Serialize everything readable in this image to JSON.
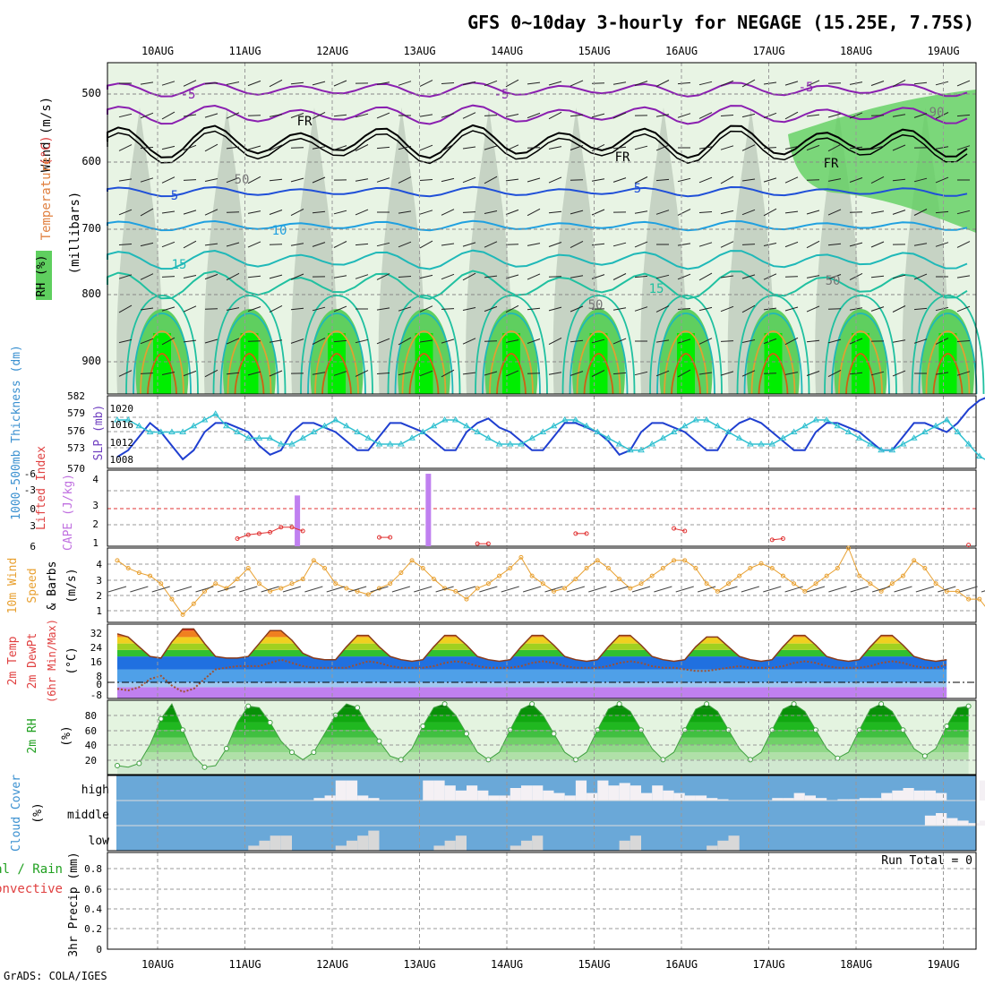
{
  "title": "GFS 0~10day 3-hourly for NEGAGE (15.25E, 7.75S)",
  "footer": "GrADS: COLA/IGES",
  "colors": {
    "rh_light": "#e8f4e4",
    "rh_mid": "#bfd9bb",
    "rh_gray": "#a9b8a9",
    "rh_green": "#5fcf5f",
    "rh_bright": "#00ee00",
    "temp_purple": "#8a1fb0",
    "temp_blue": "#1f4fd8",
    "temp_lightblue": "#1fa0e0",
    "temp_teal": "#1fb8b8",
    "temp_green": "#20c0a0",
    "temp_orange": "#e0a030",
    "temp_darkorange": "#d06010",
    "temp_magenta": "#d0108a",
    "slp": "#1f3fd0",
    "thickness": "#30c0d0",
    "lifted_index": "#e03030",
    "cape": "#c080f0",
    "wind_speed": "#e8a030",
    "temp2m": "#8a3a1a",
    "dewpt": "#a05030",
    "rh2m": "#20a020",
    "cloud_bg": "#6aa8d8",
    "cloud_fill": "#f4f0f4",
    "label_red": "#e04040",
    "label_green": "#20a020"
  },
  "x_axis": {
    "top_labels": [
      "10AUG",
      "11AUG",
      "12AUG",
      "13AUG",
      "14AUG",
      "15AUG",
      "16AUG",
      "17AUG",
      "18AUG",
      "19AUG"
    ],
    "bottom_labels": [
      "10AUG",
      "11AUG",
      "12AUG",
      "13AUG",
      "14AUG",
      "15AUG",
      "16AUG",
      "17AUG",
      "18AUG",
      "19AUG"
    ]
  },
  "panels": {
    "upper_air": {
      "labels": {
        "wind": "Wind (m/s)",
        "temperature": "Temperature",
        "temp_unit": "(°C)",
        "rh": "RH (%)",
        "pressure_axis": "(millibars)"
      },
      "y_ticks": [
        "500",
        "600",
        "700",
        "800",
        "900"
      ],
      "contour_labels": [
        "-5",
        "-5",
        "-5",
        "FR",
        "FR",
        "FR",
        "5",
        "5",
        "10",
        "15",
        "15",
        "50",
        "50",
        "50",
        "90"
      ]
    },
    "slp_thickness": {
      "labels": {
        "thickness": "1000-500mb Thickness (dm)",
        "slp": "SLP (mb)"
      },
      "thickness_ticks": [
        "582",
        "579",
        "576",
        "573",
        "570"
      ],
      "slp_ticks": [
        "1020",
        "1016",
        "1012",
        "1008"
      ]
    },
    "cape_li": {
      "labels": {
        "li": "Lifted Index",
        "cape": "CAPE (J/kg)"
      },
      "li_ticks": [
        "-6",
        "-3",
        "0",
        "3",
        "6"
      ],
      "cape_ticks": [
        "4",
        "3",
        "2",
        "1"
      ]
    },
    "wind10m": {
      "labels": {
        "line1": "10m Wind",
        "line2": "Speed",
        "line3": "& Barbs",
        "unit": "(m/s)"
      },
      "y_ticks": [
        "4",
        "3",
        "2",
        "1"
      ]
    },
    "temp2m": {
      "labels": {
        "line1": "2m Temp",
        "line2": "2m DewPt",
        "line3": "(6hr Min/Max)",
        "unit": "(°C)"
      },
      "y_ticks": [
        "32",
        "24",
        "16",
        "8",
        "0",
        "-8"
      ]
    },
    "rh2m": {
      "labels": {
        "line1": "2m RH",
        "unit": "(%)"
      },
      "y_ticks": [
        "80",
        "60",
        "40",
        "20"
      ]
    },
    "cloud": {
      "labels": {
        "line1": "Cloud Cover",
        "unit": "(%)",
        "high": "high",
        "middle": "middle",
        "low": "low"
      }
    },
    "precip": {
      "labels": {
        "line1": "Total / Rain",
        "line2": "Convective",
        "line3": "3hr Precip (mm)"
      },
      "run_total": "Run Total = 0",
      "y_ticks": [
        "0.8",
        "0.6",
        "0.4",
        "0.2",
        "0"
      ]
    }
  },
  "chart_data": [
    {
      "type": "line",
      "panel": "slp_thickness",
      "x_unit": "3-hourly steps from 09AUG 12Z",
      "series": [
        {
          "name": "SLP (mb)",
          "values": [
            1008.5,
            1010,
            1013,
            1016,
            1014,
            1011,
            1008,
            1010,
            1014,
            1016,
            1016,
            1015,
            1014,
            1011,
            1009,
            1010,
            1014,
            1016,
            1016,
            1015,
            1014,
            1012,
            1010,
            1010,
            1013,
            1016,
            1016,
            1015,
            1014,
            1012,
            1010,
            1010,
            1014,
            1016,
            1017,
            1015,
            1014,
            1012,
            1010,
            1010,
            1013,
            1016,
            1016,
            1015,
            1014,
            1012,
            1009,
            1010,
            1014,
            1016,
            1016,
            1015,
            1014,
            1012,
            1010,
            1010,
            1014,
            1016,
            1017,
            1016,
            1014,
            1012,
            1010,
            1010,
            1014,
            1016,
            1016,
            1015,
            1014,
            1012,
            1010,
            1010,
            1013,
            1016,
            1016,
            1015,
            1014,
            1016,
            1019,
            1021,
            1022
          ]
        },
        {
          "name": "Thickness (dm)",
          "values": [
            578,
            578,
            577,
            576,
            576,
            576,
            576,
            577,
            578,
            579,
            577,
            576,
            575,
            575,
            575,
            574,
            574,
            575,
            576,
            577,
            578,
            577,
            576,
            575,
            574,
            574,
            574,
            575,
            576,
            577,
            578,
            578,
            577,
            576,
            575,
            574,
            574,
            574,
            575,
            576,
            577,
            578,
            578,
            577,
            576,
            575,
            574,
            573,
            573,
            574,
            575,
            576,
            577,
            578,
            578,
            577,
            576,
            575,
            574,
            574,
            574,
            575,
            576,
            577,
            578,
            578,
            577,
            576,
            575,
            574,
            573,
            573,
            574,
            575,
            576,
            577,
            578,
            576,
            574,
            572,
            571
          ]
        }
      ],
      "ylim_thickness": [
        570,
        582
      ],
      "ylim_slp": [
        1006,
        1022
      ]
    },
    {
      "type": "bar",
      "panel": "cape_li",
      "series": [
        {
          "name": "CAPE (J/kg)",
          "bars": [
            {
              "x": 16.5,
              "value": 2.8
            },
            {
              "x": 28.5,
              "value": 4.0
            }
          ]
        },
        {
          "name": "Lifted Index",
          "points": [
            [
              11,
              4.8
            ],
            [
              12,
              4.2
            ],
            [
              13,
              4.0
            ],
            [
              14,
              3.8
            ],
            [
              15,
              3.0
            ],
            [
              16,
              3.0
            ],
            [
              17,
              3.6
            ],
            [
              24,
              4.6
            ],
            [
              25,
              4.6
            ],
            [
              33,
              5.6
            ],
            [
              34,
              5.6
            ],
            [
              42,
              4.0
            ],
            [
              43,
              4.0
            ],
            [
              51,
              3.2
            ],
            [
              52,
              3.6
            ],
            [
              60,
              5.0
            ],
            [
              61,
              4.8
            ],
            [
              78,
              5.8
            ]
          ]
        }
      ],
      "ylim_cape": [
        0,
        4.2
      ],
      "ylim_li": [
        6,
        -6
      ]
    },
    {
      "type": "line",
      "panel": "wind10m",
      "series": [
        {
          "name": "10m Wind Speed (m/s)",
          "values": [
            4,
            3.5,
            3.2,
            3,
            2.5,
            1.5,
            0.5,
            1.2,
            2,
            2.5,
            2.2,
            2.8,
            3.5,
            2.5,
            2,
            2.2,
            2.5,
            2.8,
            4,
            3.5,
            2.5,
            2.2,
            2,
            1.8,
            2.2,
            2.5,
            3.2,
            4,
            3.5,
            2.8,
            2.2,
            2,
            1.5,
            2.2,
            2.5,
            3,
            3.5,
            4.2,
            3,
            2.5,
            2,
            2.2,
            2.8,
            3.5,
            4,
            3.5,
            2.8,
            2.2,
            2.5,
            3,
            3.5,
            4,
            4,
            3.5,
            2.5,
            2,
            2.5,
            3,
            3.5,
            3.8,
            3.5,
            3,
            2.5,
            2,
            2.5,
            3,
            3.5,
            4.8,
            3,
            2.5,
            2,
            2.5,
            3,
            4,
            3.5,
            2.5,
            2,
            2,
            1.5,
            1.5,
            0.6
          ]
        }
      ],
      "ylim": [
        0,
        4.8
      ]
    },
    {
      "type": "area",
      "panel": "temp2m",
      "series": [
        {
          "name": "2m Temp (°C)",
          "values": [
            30,
            28,
            22,
            16,
            15,
            25,
            33,
            33,
            24,
            16,
            15,
            15,
            16,
            24,
            32,
            32,
            26,
            18,
            15,
            14,
            14,
            22,
            29,
            29,
            22,
            16,
            14,
            13,
            14,
            22,
            29,
            29,
            23,
            16,
            14,
            13,
            14,
            22,
            29,
            29,
            23,
            16,
            14,
            13,
            14,
            22,
            29,
            29,
            23,
            16,
            14,
            13,
            14,
            22,
            28,
            28,
            22,
            16,
            14,
            13,
            14,
            22,
            29,
            29,
            23,
            16,
            14,
            13,
            14,
            22,
            29,
            29,
            23,
            16,
            14,
            13,
            14
          ]
        },
        {
          "name": "2m DewPt (°C)",
          "values": [
            -4,
            -5,
            -3,
            2,
            4,
            -2,
            -6,
            -4,
            2,
            8,
            9,
            10,
            10,
            10,
            12,
            14,
            12,
            10,
            9,
            9,
            9,
            9,
            11,
            13,
            12,
            10,
            9,
            9,
            9,
            10,
            12,
            13,
            12,
            10,
            9,
            9,
            9,
            10,
            12,
            13,
            12,
            10,
            9,
            9,
            9,
            10,
            12,
            13,
            12,
            10,
            9,
            9,
            8,
            7,
            7,
            8,
            9,
            10,
            9,
            9,
            9,
            10,
            12,
            13,
            12,
            10,
            9,
            9,
            9,
            10,
            12,
            13,
            12,
            10,
            9,
            9,
            11
          ]
        }
      ],
      "ylim": [
        -10,
        36
      ]
    },
    {
      "type": "area",
      "panel": "rh2m",
      "series": [
        {
          "name": "2m RH (%)",
          "values": [
            12,
            10,
            15,
            40,
            75,
            95,
            60,
            25,
            10,
            12,
            35,
            70,
            92,
            90,
            70,
            45,
            30,
            20,
            30,
            55,
            80,
            95,
            90,
            65,
            45,
            25,
            20,
            35,
            65,
            90,
            95,
            80,
            55,
            30,
            20,
            30,
            60,
            88,
            95,
            80,
            55,
            30,
            20,
            30,
            60,
            88,
            95,
            85,
            60,
            35,
            20,
            30,
            60,
            88,
            95,
            85,
            60,
            35,
            20,
            30,
            60,
            88,
            95,
            85,
            60,
            35,
            22,
            30,
            60,
            88,
            95,
            85,
            60,
            35,
            25,
            35,
            65,
            90,
            92
          ]
        }
      ],
      "ylim": [
        0,
        100
      ]
    },
    {
      "type": "bar",
      "panel": "cloud",
      "series": [
        {
          "name": "high",
          "values": [
            0,
            0,
            0,
            0,
            0,
            0,
            0,
            0,
            0,
            0,
            0,
            0,
            0,
            0,
            0,
            0,
            0,
            0,
            10,
            20,
            80,
            80,
            20,
            10,
            0,
            0,
            0,
            0,
            80,
            80,
            60,
            40,
            60,
            40,
            20,
            20,
            50,
            60,
            60,
            40,
            30,
            20,
            80,
            30,
            80,
            60,
            70,
            60,
            30,
            60,
            40,
            30,
            20,
            20,
            10,
            5,
            0,
            0,
            0,
            0,
            10,
            10,
            30,
            20,
            10,
            0,
            5,
            5,
            10,
            10,
            30,
            40,
            50,
            40,
            40,
            30,
            0,
            0,
            0,
            80,
            60
          ]
        },
        {
          "name": "middle",
          "values": [
            0,
            0,
            0,
            0,
            0,
            0,
            0,
            0,
            0,
            0,
            0,
            0,
            0,
            0,
            0,
            0,
            0,
            0,
            0,
            0,
            0,
            0,
            0,
            0,
            0,
            0,
            0,
            0,
            0,
            0,
            0,
            0,
            0,
            0,
            0,
            0,
            0,
            0,
            0,
            0,
            0,
            0,
            0,
            0,
            0,
            0,
            0,
            0,
            0,
            0,
            0,
            0,
            0,
            0,
            0,
            0,
            0,
            0,
            0,
            0,
            0,
            0,
            0,
            0,
            0,
            0,
            0,
            0,
            0,
            0,
            0,
            0,
            0,
            0,
            40,
            50,
            30,
            20,
            10,
            20,
            10
          ]
        },
        {
          "name": "low",
          "values": [
            0,
            0,
            0,
            0,
            0,
            0,
            0,
            0,
            0,
            0,
            0,
            0,
            20,
            40,
            60,
            60,
            0,
            0,
            0,
            0,
            20,
            40,
            60,
            80,
            0,
            0,
            0,
            0,
            0,
            20,
            40,
            60,
            0,
            0,
            0,
            0,
            20,
            40,
            60,
            0,
            0,
            0,
            0,
            0,
            0,
            0,
            40,
            60,
            0,
            0,
            0,
            0,
            0,
            0,
            20,
            40,
            60,
            0,
            0,
            0,
            0,
            0,
            0,
            0,
            0,
            0,
            0,
            0,
            0,
            0,
            0,
            0,
            0,
            0,
            0,
            0,
            0,
            0,
            0,
            0,
            30
          ]
        }
      ],
      "ylim": [
        0,
        100
      ]
    },
    {
      "type": "line",
      "panel": "precip",
      "series": [
        {
          "name": "3hr Precip (mm)",
          "values": []
        }
      ],
      "ylim": [
        0,
        1
      ]
    }
  ]
}
